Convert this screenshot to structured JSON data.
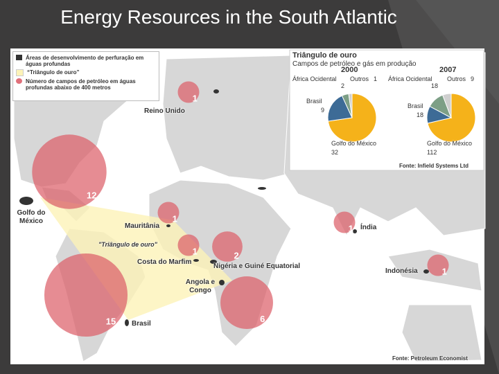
{
  "title": "Energy Resources in the South Atlantic",
  "legend": {
    "items": [
      "Áreas de desenvolvimento de perfuração em águas profundas",
      "“Triângulo de ouro”",
      "Número de campos de petróleo em águas profundas abaixo de 400 metros"
    ]
  },
  "map": {
    "triangle_label": "\"Triângulo de ouro\"",
    "fields": [
      {
        "label": "Reino Unido",
        "count": 1
      },
      {
        "label": "Golfo do México",
        "count": 12
      },
      {
        "label": "Mauritânia",
        "count": 1
      },
      {
        "label": "Costa do Marfim",
        "count": 1
      },
      {
        "label": "Nigéria e Guiné Equatorial",
        "count": 2
      },
      {
        "label": "Angola e Congo",
        "count": 6
      },
      {
        "label": "Brasil",
        "count": 15
      },
      {
        "label": "Índia",
        "count": 1
      },
      {
        "label": "Indonésia",
        "count": 1
      }
    ]
  },
  "inset": {
    "title": "Triângulo de ouro",
    "subtitle": "Campos de petróleo e gás em produção",
    "source": "Fonte: Infield Systems Ltd"
  },
  "chart_data": [
    {
      "type": "pie",
      "title": "2000",
      "categories": [
        "Golfo do México",
        "Brasil",
        "África Ocidental",
        "Outros"
      ],
      "values": [
        32,
        9,
        2,
        1
      ],
      "colors": [
        "#f5b21a",
        "#3d6b96",
        "#7d9f86",
        "#cfcfcf"
      ]
    },
    {
      "type": "pie",
      "title": "2007",
      "categories": [
        "Golfo do México",
        "Brasil",
        "África Ocidental",
        "Outros"
      ],
      "values": [
        112,
        18,
        18,
        9
      ],
      "colors": [
        "#f5b21a",
        "#3d6b96",
        "#7d9f86",
        "#cfcfcf"
      ]
    }
  ],
  "source": "Fonte: Petroleum Economist"
}
